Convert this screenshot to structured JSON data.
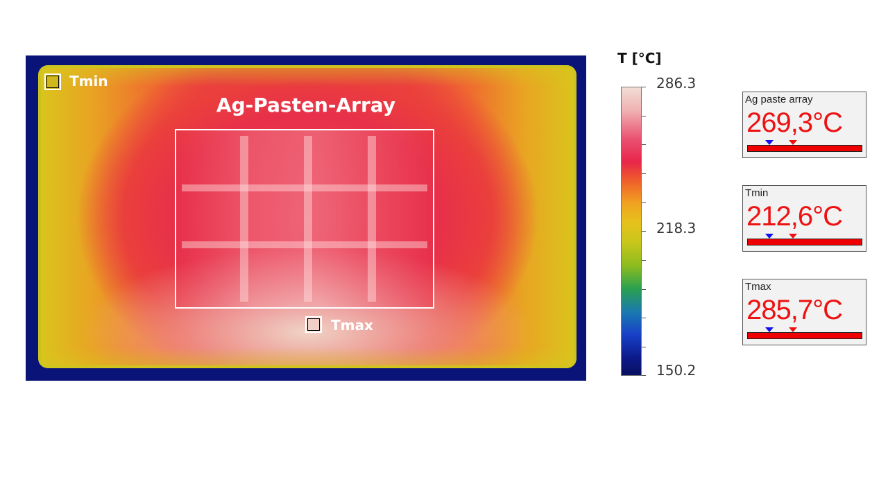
{
  "thermal_image": {
    "roi_label": "Ag-Pasten-Array",
    "tmin_spot_label": "Tmin",
    "tmax_spot_label": "Tmax"
  },
  "scale": {
    "title": "T [°C]",
    "max": "286.3",
    "mid": "218.3",
    "min": "150.2"
  },
  "panels": [
    {
      "title": "Ag paste array",
      "value": "269,3°C"
    },
    {
      "title": "Tmin",
      "value": "212,6°C"
    },
    {
      "title": "Tmax",
      "value": "285,7°C"
    }
  ],
  "colors": {
    "readout_text": "#ee1111",
    "marker_min": "#1010ee",
    "marker_max": "#ee1111"
  }
}
